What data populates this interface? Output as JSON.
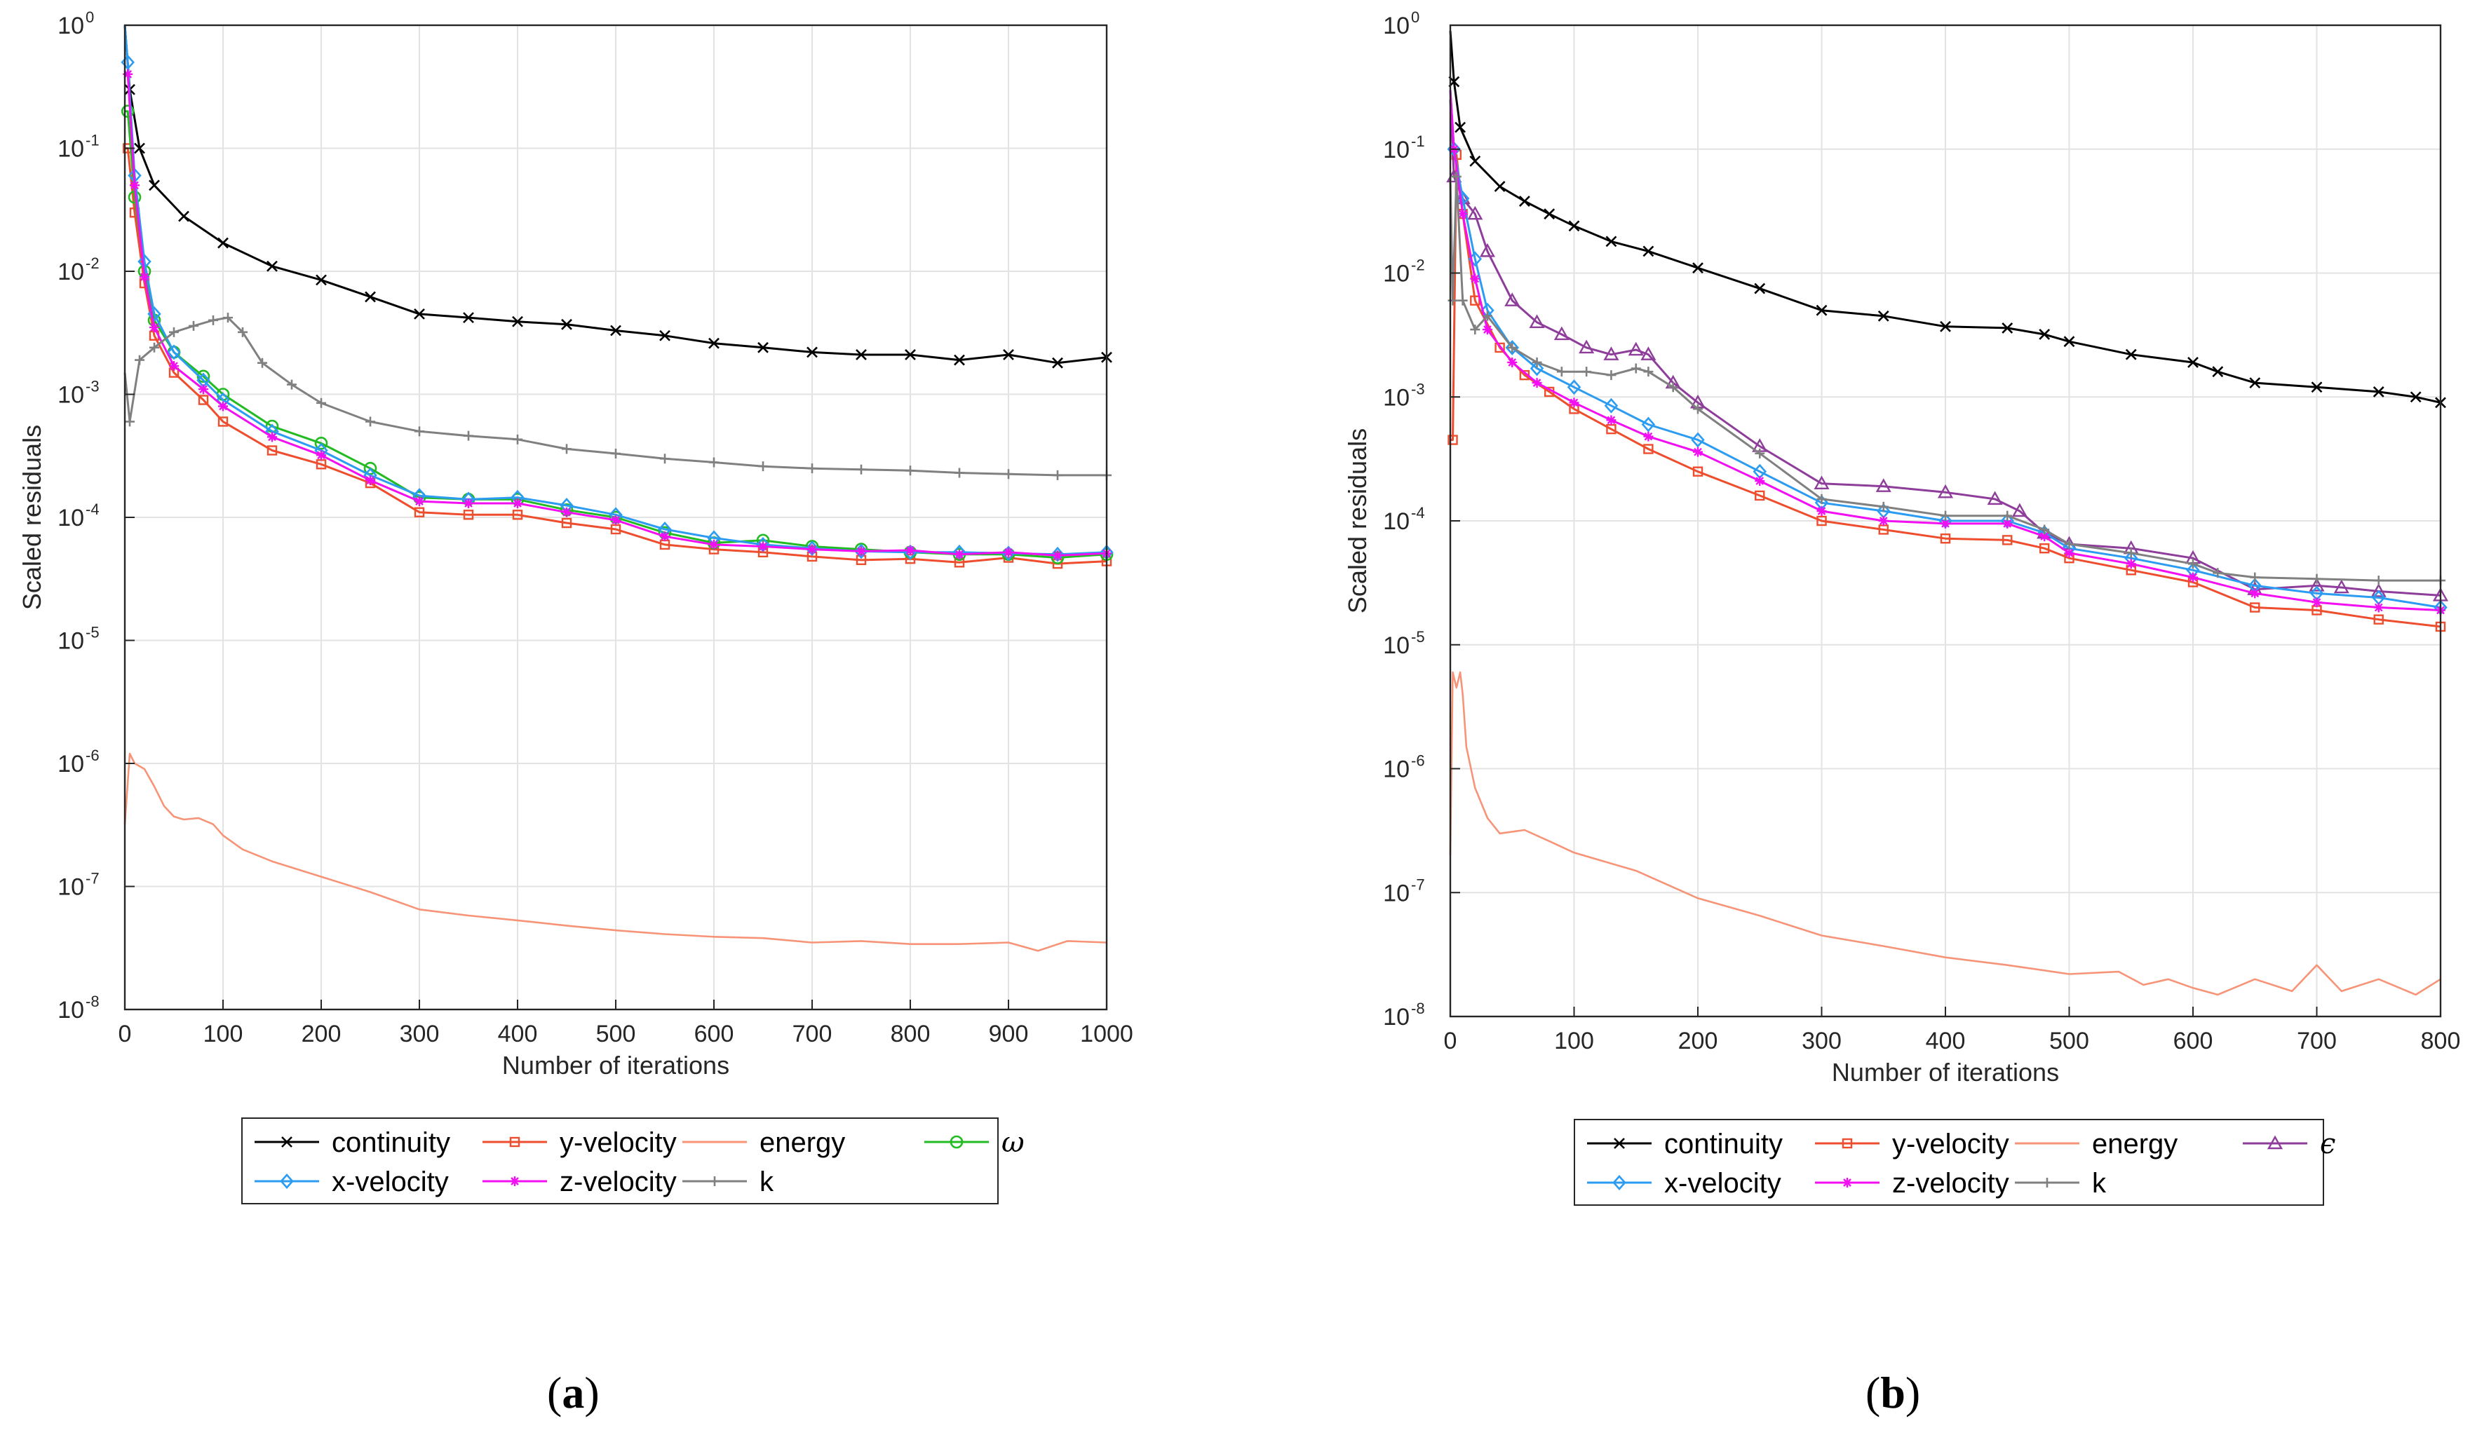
{
  "colors": {
    "continuity": "#000000",
    "y-velocity": "#ee4d2e",
    "energy": "#f79478",
    "omega": "#22bb22",
    "x-velocity": "#2b9cf2",
    "z-velocity": "#f20ff2",
    "k": "#808080",
    "epsilon": "#8e3d9b",
    "grid": "#e3e3e3",
    "axis": "#262626"
  },
  "chart_data": [
    {
      "type": "line",
      "panel_label": "a",
      "xlabel": "Number of iterations",
      "ylabel": "Scaled residuals",
      "yscale": "log",
      "xlim": [
        0,
        1000
      ],
      "ylim_exp": [
        -8,
        0
      ],
      "grid": true,
      "x_ticks": [
        "0",
        "100",
        "200",
        "300",
        "400",
        "500",
        "600",
        "700",
        "800",
        "900",
        "1000"
      ],
      "y_ticks": [
        "-8",
        "-7",
        "-6",
        "-5",
        "-4",
        "-3",
        "-2",
        "-1",
        "0"
      ],
      "legend": {
        "rows": [
          [
            "continuity",
            "y-velocity",
            "energy",
            "ω"
          ],
          [
            "x-velocity",
            "z-velocity",
            "k"
          ]
        ]
      },
      "series": [
        {
          "name": "continuity",
          "color": "continuity",
          "marker": "x",
          "x": [
            0,
            5,
            15,
            30,
            60,
            100,
            150,
            200,
            250,
            300,
            350,
            400,
            450,
            500,
            550,
            600,
            650,
            700,
            750,
            800,
            850,
            900,
            950,
            1000
          ],
          "y": [
            1.0,
            0.3,
            0.1,
            0.05,
            0.028,
            0.017,
            0.011,
            0.0085,
            0.0062,
            0.0045,
            0.0042,
            0.0039,
            0.0037,
            0.0033,
            0.003,
            0.0026,
            0.0024,
            0.0022,
            0.0021,
            0.0021,
            0.0019,
            0.0021,
            0.0018,
            0.002
          ]
        },
        {
          "name": "y-velocity",
          "color": "y-velocity",
          "marker": "square",
          "x": [
            0,
            3,
            10,
            20,
            30,
            50,
            80,
            100,
            150,
            200,
            250,
            300,
            350,
            400,
            450,
            500,
            550,
            600,
            650,
            700,
            750,
            800,
            850,
            900,
            950,
            1000
          ],
          "y": [
            0.1,
            0.1,
            0.03,
            0.008,
            0.003,
            0.0015,
            0.0009,
            0.0006,
            0.00035,
            0.00027,
            0.00019,
            0.00011,
            0.000105,
            0.000105,
            9e-05,
            8e-05,
            6e-05,
            5.5e-05,
            5.2e-05,
            4.8e-05,
            4.5e-05,
            4.6e-05,
            4.3e-05,
            4.7e-05,
            4.2e-05,
            4.4e-05
          ]
        },
        {
          "name": "energy",
          "color": "energy",
          "marker": "none",
          "x": [
            0,
            5,
            10,
            20,
            30,
            40,
            50,
            60,
            75,
            90,
            100,
            120,
            150,
            200,
            250,
            300,
            350,
            400,
            450,
            500,
            550,
            600,
            650,
            700,
            750,
            800,
            850,
            900,
            930,
            960,
            1000
          ],
          "y": [
            3.2e-07,
            1.2e-06,
            1e-06,
            9e-07,
            6.5e-07,
            4.5e-07,
            3.7e-07,
            3.5e-07,
            3.6e-07,
            3.2e-07,
            2.6e-07,
            2e-07,
            1.6e-07,
            1.2e-07,
            9e-08,
            6.5e-08,
            5.8e-08,
            5.3e-08,
            4.8e-08,
            4.4e-08,
            4.1e-08,
            3.9e-08,
            3.8e-08,
            3.5e-08,
            3.6e-08,
            3.4e-08,
            3.4e-08,
            3.5e-08,
            3e-08,
            3.6e-08,
            3.5e-08
          ]
        },
        {
          "name": "ω",
          "color": "omega",
          "marker": "circle",
          "x": [
            0,
            3,
            10,
            20,
            30,
            50,
            80,
            100,
            150,
            200,
            250,
            300,
            350,
            400,
            450,
            500,
            550,
            600,
            650,
            700,
            750,
            800,
            850,
            900,
            950,
            1000
          ],
          "y": [
            0.2,
            0.2,
            0.04,
            0.01,
            0.004,
            0.0022,
            0.0014,
            0.001,
            0.00055,
            0.0004,
            0.00025,
            0.000145,
            0.00014,
            0.00014,
            0.000115,
            0.0001,
            7.5e-05,
            6.2e-05,
            6.5e-05,
            5.8e-05,
            5.5e-05,
            5.2e-05,
            5e-05,
            5e-05,
            4.7e-05,
            5e-05
          ]
        },
        {
          "name": "x-velocity",
          "color": "x-velocity",
          "marker": "diamond",
          "x": [
            0,
            3,
            10,
            20,
            30,
            50,
            80,
            100,
            150,
            200,
            250,
            300,
            350,
            400,
            450,
            500,
            550,
            600,
            650,
            700,
            750,
            800,
            850,
            900,
            950,
            1000
          ],
          "y": [
            1.0,
            0.5,
            0.06,
            0.012,
            0.0045,
            0.0022,
            0.0013,
            0.0009,
            0.0005,
            0.00035,
            0.00022,
            0.00015,
            0.00014,
            0.000145,
            0.000125,
            0.000105,
            8e-05,
            6.8e-05,
            6e-05,
            5.6e-05,
            5.3e-05,
            5.2e-05,
            5.2e-05,
            5.1e-05,
            5e-05,
            5.2e-05
          ]
        },
        {
          "name": "z-velocity",
          "color": "z-velocity",
          "marker": "star",
          "x": [
            0,
            3,
            10,
            20,
            30,
            50,
            80,
            100,
            150,
            200,
            250,
            300,
            350,
            400,
            450,
            500,
            550,
            600,
            650,
            700,
            750,
            800,
            850,
            900,
            950,
            1000
          ],
          "y": [
            0.4,
            0.4,
            0.05,
            0.009,
            0.0035,
            0.0017,
            0.0011,
            0.0008,
            0.00045,
            0.00032,
            0.0002,
            0.000135,
            0.00013,
            0.00013,
            0.00011,
            9.5e-05,
            7e-05,
            6e-05,
            5.8e-05,
            5.5e-05,
            5.3e-05,
            5.4e-05,
            5e-05,
            5.2e-05,
            4.9e-05,
            5.1e-05
          ]
        },
        {
          "name": "k",
          "color": "k",
          "marker": "plus",
          "x": [
            0,
            5,
            15,
            30,
            50,
            70,
            90,
            105,
            120,
            140,
            170,
            200,
            250,
            300,
            350,
            400,
            450,
            500,
            550,
            600,
            650,
            700,
            750,
            800,
            850,
            900,
            950,
            1000
          ],
          "y": [
            0.0015,
            0.0006,
            0.0019,
            0.0024,
            0.0032,
            0.0036,
            0.004,
            0.0042,
            0.0032,
            0.0018,
            0.0012,
            0.00085,
            0.0006,
            0.0005,
            0.00046,
            0.00043,
            0.00036,
            0.00033,
            0.0003,
            0.00028,
            0.00026,
            0.00025,
            0.000245,
            0.00024,
            0.00023,
            0.000225,
            0.00022,
            0.00022
          ]
        }
      ]
    },
    {
      "type": "line",
      "panel_label": "b",
      "xlabel": "Number of iterations",
      "ylabel": "Scaled residuals",
      "yscale": "log",
      "xlim": [
        0,
        800
      ],
      "ylim_exp": [
        -8,
        0
      ],
      "grid": true,
      "x_ticks": [
        "0",
        "100",
        "200",
        "300",
        "400",
        "500",
        "600",
        "700",
        "800"
      ],
      "y_ticks": [
        "-8",
        "-7",
        "-6",
        "-5",
        "-4",
        "-3",
        "-2",
        "-1",
        "0"
      ],
      "legend": {
        "rows": [
          [
            "continuity",
            "y-velocity",
            "energy",
            "ϵ"
          ],
          [
            "x-velocity",
            "z-velocity",
            "k"
          ]
        ]
      },
      "series": [
        {
          "name": "continuity",
          "color": "continuity",
          "marker": "x",
          "x": [
            0,
            3,
            8,
            20,
            40,
            60,
            80,
            100,
            130,
            160,
            200,
            250,
            300,
            350,
            400,
            450,
            480,
            500,
            550,
            600,
            620,
            650,
            700,
            750,
            780,
            800
          ],
          "y": [
            0.9,
            0.35,
            0.15,
            0.08,
            0.05,
            0.038,
            0.03,
            0.024,
            0.018,
            0.015,
            0.011,
            0.0075,
            0.005,
            0.0045,
            0.0037,
            0.0036,
            0.0032,
            0.0028,
            0.0022,
            0.0019,
            0.0016,
            0.0013,
            0.0012,
            0.0011,
            0.001,
            0.0009
          ]
        },
        {
          "name": "y-velocity",
          "color": "y-velocity",
          "marker": "square",
          "x": [
            0,
            2,
            5,
            10,
            20,
            40,
            60,
            80,
            100,
            130,
            160,
            200,
            250,
            300,
            350,
            400,
            450,
            480,
            500,
            550,
            600,
            650,
            700,
            750,
            800
          ],
          "y": [
            0.00045,
            0.00045,
            0.09,
            0.03,
            0.006,
            0.0025,
            0.0015,
            0.0011,
            0.0008,
            0.00055,
            0.00038,
            0.00025,
            0.00016,
            0.0001,
            8.5e-05,
            7.2e-05,
            7e-05,
            6e-05,
            5e-05,
            4e-05,
            3.2e-05,
            2e-05,
            1.9e-05,
            1.6e-05,
            1.4e-05
          ]
        },
        {
          "name": "energy",
          "color": "energy",
          "marker": "none",
          "x": [
            0,
            2,
            5,
            8,
            10,
            13,
            20,
            30,
            40,
            60,
            80,
            100,
            150,
            200,
            250,
            300,
            350,
            400,
            450,
            500,
            540,
            560,
            580,
            600,
            620,
            650,
            680,
            700,
            720,
            750,
            780,
            800
          ],
          "y": [
            2e-07,
            6e-06,
            4.5e-06,
            6e-06,
            4e-06,
            1.5e-06,
            7e-07,
            4e-07,
            3e-07,
            3.2e-07,
            2.6e-07,
            2.1e-07,
            1.5e-07,
            9e-08,
            6.5e-08,
            4.5e-08,
            3.7e-08,
            3e-08,
            2.6e-08,
            2.2e-08,
            2.3e-08,
            1.8e-08,
            2e-08,
            1.7e-08,
            1.5e-08,
            2e-08,
            1.6e-08,
            2.6e-08,
            1.6e-08,
            2e-08,
            1.5e-08,
            2e-08
          ]
        },
        {
          "name": "ϵ",
          "color": "epsilon",
          "marker": "triangle",
          "x": [
            0,
            3,
            10,
            20,
            30,
            50,
            70,
            90,
            110,
            130,
            150,
            160,
            180,
            200,
            250,
            300,
            350,
            400,
            440,
            460,
            480,
            500,
            550,
            600,
            650,
            700,
            720,
            750,
            800
          ],
          "y": [
            0.25,
            0.06,
            0.04,
            0.03,
            0.015,
            0.006,
            0.004,
            0.0032,
            0.0025,
            0.0022,
            0.0024,
            0.0022,
            0.0013,
            0.0009,
            0.0004,
            0.0002,
            0.00019,
            0.00017,
            0.00015,
            0.00012,
            8e-05,
            6.5e-05,
            6e-05,
            5e-05,
            2.8e-05,
            3e-05,
            2.9e-05,
            2.7e-05,
            2.5e-05
          ]
        },
        {
          "name": "x-velocity",
          "color": "x-velocity",
          "marker": "diamond",
          "x": [
            0,
            3,
            10,
            20,
            30,
            50,
            70,
            100,
            130,
            160,
            200,
            250,
            300,
            350,
            400,
            450,
            480,
            500,
            550,
            600,
            650,
            700,
            750,
            800
          ],
          "y": [
            0.3,
            0.1,
            0.04,
            0.013,
            0.005,
            0.0025,
            0.0017,
            0.0012,
            0.00085,
            0.0006,
            0.00045,
            0.00025,
            0.00014,
            0.00012,
            0.0001,
            0.0001,
            8e-05,
            6e-05,
            5e-05,
            4e-05,
            3e-05,
            2.6e-05,
            2.4e-05,
            2e-05
          ]
        },
        {
          "name": "z-velocity",
          "color": "z-velocity",
          "marker": "star",
          "x": [
            0,
            3,
            10,
            20,
            30,
            50,
            70,
            100,
            130,
            160,
            200,
            250,
            300,
            350,
            400,
            450,
            480,
            500,
            550,
            600,
            650,
            700,
            750,
            800
          ],
          "y": [
            0.3,
            0.1,
            0.03,
            0.009,
            0.0035,
            0.0019,
            0.0013,
            0.0009,
            0.00065,
            0.00048,
            0.00036,
            0.00021,
            0.00012,
            0.0001,
            9.5e-05,
            9.5e-05,
            7.5e-05,
            5.5e-05,
            4.5e-05,
            3.5e-05,
            2.6e-05,
            2.2e-05,
            2e-05,
            1.9e-05
          ]
        },
        {
          "name": "k",
          "color": "k",
          "marker": "plus",
          "x": [
            0,
            2,
            5,
            10,
            20,
            30,
            50,
            70,
            90,
            110,
            130,
            150,
            160,
            180,
            200,
            250,
            300,
            350,
            400,
            450,
            480,
            500,
            550,
            600,
            620,
            650,
            700,
            750,
            800
          ],
          "y": [
            0.06,
            0.006,
            0.06,
            0.006,
            0.0035,
            0.0045,
            0.0025,
            0.0019,
            0.0016,
            0.0016,
            0.0015,
            0.0017,
            0.0016,
            0.0012,
            0.0008,
            0.00035,
            0.00015,
            0.00013,
            0.00011,
            0.00011,
            8.5e-05,
            6.5e-05,
            5.5e-05,
            4.5e-05,
            3.8e-05,
            3.5e-05,
            3.4e-05,
            3.3e-05,
            3.3e-05
          ]
        }
      ]
    }
  ]
}
